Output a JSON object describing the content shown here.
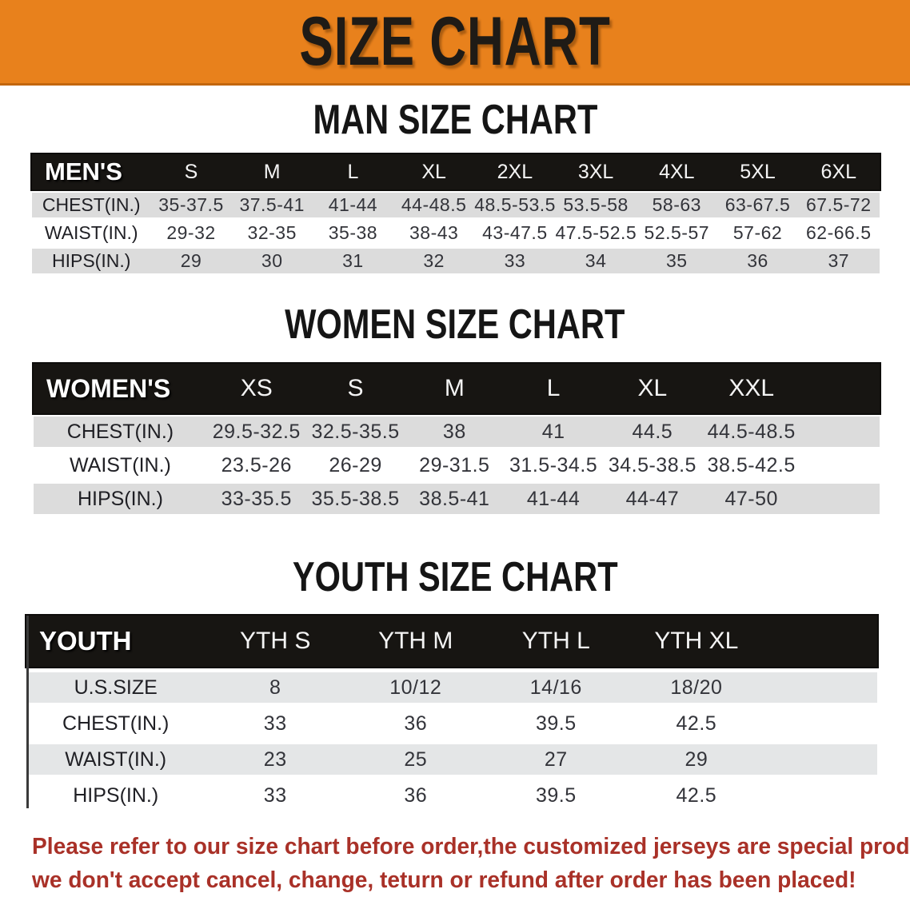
{
  "colors": {
    "banner_bg": "#E8811C",
    "banner_text": "#1F1B16",
    "band_bg": "#171512",
    "row_gray": "#DCDCDC",
    "youth_row_gray": "#E4E6E7",
    "cell_text": "#33343A",
    "footer_red": "#A93128"
  },
  "banner": {
    "title": "SIZE CHART"
  },
  "sections": [
    {
      "heading": "MAN SIZE CHART",
      "table": {
        "label": "MEN'S",
        "columns": [
          "S",
          "M",
          "L",
          "XL",
          "2XL",
          "3XL",
          "4XL",
          "5XL",
          "6XL"
        ],
        "rows": [
          {
            "label": "CHEST(IN.)",
            "values": [
              "35-37.5",
              "37.5-41",
              "41-44",
              "44-48.5",
              "48.5-53.5",
              "53.5-58",
              "58-63",
              "63-67.5",
              "67.5-72"
            ]
          },
          {
            "label": "WAIST(IN.)",
            "values": [
              "29-32",
              "32-35",
              "35-38",
              "38-43",
              "43-47.5",
              "47.5-52.5",
              "52.5-57",
              "57-62",
              "62-66.5"
            ]
          },
          {
            "label": "HIPS(IN.)",
            "values": [
              "29",
              "30",
              "31",
              "32",
              "33",
              "34",
              "35",
              "36",
              "37"
            ]
          }
        ]
      }
    },
    {
      "heading": "WOMEN SIZE CHART",
      "table": {
        "label": "WOMEN'S",
        "columns": [
          "XS",
          "S",
          "M",
          "L",
          "XL",
          "XXL"
        ],
        "rows": [
          {
            "label": "CHEST(IN.)",
            "values": [
              "29.5-32.5",
              "32.5-35.5",
              "38",
              "41",
              "44.5",
              "44.5-48.5"
            ]
          },
          {
            "label": "WAIST(IN.)",
            "values": [
              "23.5-26",
              "26-29",
              "29-31.5",
              "31.5-34.5",
              "34.5-38.5",
              "38.5-42.5"
            ]
          },
          {
            "label": "HIPS(IN.)",
            "values": [
              "33-35.5",
              "35.5-38.5",
              "38.5-41",
              "41-44",
              "44-47",
              "47-50"
            ]
          }
        ]
      }
    },
    {
      "heading": "YOUTH SIZE CHART",
      "table": {
        "label": "YOUTH",
        "columns": [
          "YTH S",
          "YTH M",
          "YTH L",
          "YTH XL"
        ],
        "rows": [
          {
            "label": "U.S.SIZE",
            "values": [
              "8",
              "10/12",
              "14/16",
              "18/20"
            ]
          },
          {
            "label": "CHEST(IN.)",
            "values": [
              "33",
              "36",
              "39.5",
              "42.5"
            ]
          },
          {
            "label": "WAIST(IN.)",
            "values": [
              "23",
              "25",
              "27",
              "29"
            ]
          },
          {
            "label": "HIPS(IN.)",
            "values": [
              "33",
              "36",
              "39.5",
              "42.5"
            ]
          }
        ]
      }
    }
  ],
  "footer": {
    "line1": "Please refer to our size chart before order,the customized jerseys are special products,",
    "line2": "we don't accept cancel, change, teturn or refund after order has been placed!"
  }
}
